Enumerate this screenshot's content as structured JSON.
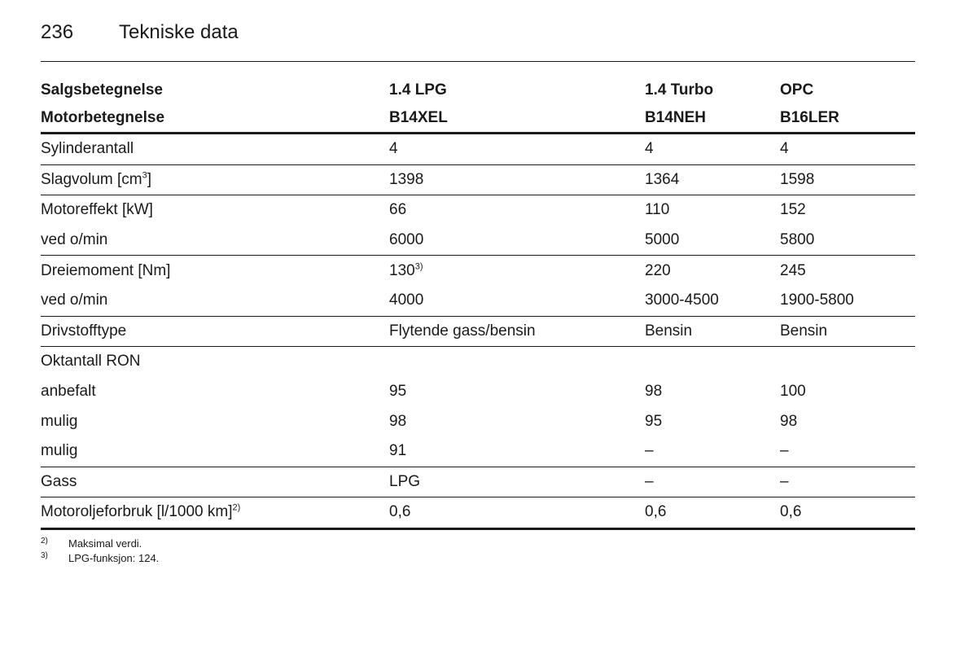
{
  "header": {
    "page_number": "236",
    "title": "Tekniske data"
  },
  "table": {
    "head": [
      {
        "c0": "Salgsbetegnelse",
        "c1": "1.4 LPG",
        "c2": "1.4 Turbo",
        "c3": "OPC"
      },
      {
        "c0": "Motorbetegnelse",
        "c1": "B14XEL",
        "c2": "B14NEH",
        "c3": "B16LER"
      }
    ],
    "rows": [
      {
        "c0": "Sylinderantall",
        "c1": "4",
        "c2": "4",
        "c3": "4"
      },
      {
        "c0": "Slagvolum [cm",
        "c0_sup": "3",
        "c0_tail": "]",
        "c1": "1398",
        "c2": "1364",
        "c3": "1598"
      },
      {
        "c0": "Motoreffekt [kW]",
        "c1": "66",
        "c2": "110",
        "c3": "152"
      },
      {
        "c0": "ved o/min",
        "c1": "6000",
        "c2": "5000",
        "c3": "5800"
      },
      {
        "c0": "Dreiemoment [Nm]",
        "c1": "130",
        "c1_sup": "3)",
        "c2": "220",
        "c3": "245"
      },
      {
        "c0": "ved o/min",
        "c1": "4000",
        "c2": "3000-4500",
        "c3": "1900-5800"
      },
      {
        "c0": "Drivstofftype",
        "c1": "Flytende gass/bensin",
        "c2": "Bensin",
        "c3": "Bensin"
      },
      {
        "c0": "Oktantall RON",
        "c1": "",
        "c2": "",
        "c3": ""
      },
      {
        "c0": "anbefalt",
        "c1": "95",
        "c2": "98",
        "c3": "100"
      },
      {
        "c0": "mulig",
        "c1": "98",
        "c2": "95",
        "c3": "98"
      },
      {
        "c0": "mulig",
        "c1": "91",
        "c2": "–",
        "c3": "–"
      },
      {
        "c0": "Gass",
        "c1": "LPG",
        "c2": "–",
        "c3": "–"
      },
      {
        "c0": "Motoroljeforbruk [l/1000 km]",
        "c0_sup": "2)",
        "c1": "0,6",
        "c2": "0,6",
        "c3": "0,6"
      }
    ]
  },
  "footnotes": [
    {
      "mark": "2)",
      "text": "Maksimal verdi."
    },
    {
      "mark": "3)",
      "text": "LPG-funksjon: 124."
    }
  ]
}
